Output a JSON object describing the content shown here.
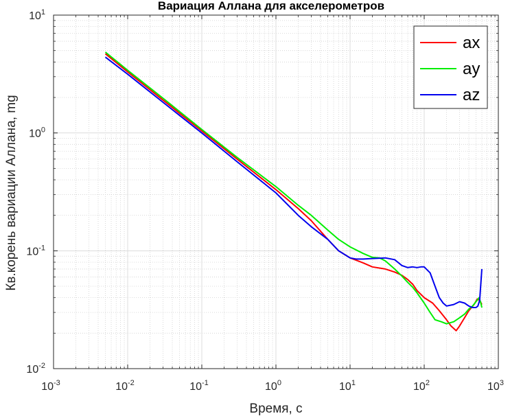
{
  "chart_data": {
    "type": "line",
    "title": "Вариация Аллана для акселерометров",
    "xlabel": "Время, с",
    "ylabel": "Кв.корень вариации Аллана, mg",
    "xscale": "log",
    "yscale": "log",
    "xlim": [
      0.001,
      1000
    ],
    "ylim": [
      0.01,
      10
    ],
    "grid": true,
    "minor_grid": true,
    "legend_position": "top-right",
    "x_ticks": [
      {
        "base": "10",
        "exp": "-3"
      },
      {
        "base": "10",
        "exp": "-2"
      },
      {
        "base": "10",
        "exp": "-1"
      },
      {
        "base": "10",
        "exp": "0"
      },
      {
        "base": "10",
        "exp": "1"
      },
      {
        "base": "10",
        "exp": "2"
      },
      {
        "base": "10",
        "exp": "3"
      }
    ],
    "y_ticks": [
      {
        "base": "10",
        "exp": "-2"
      },
      {
        "base": "10",
        "exp": "-1"
      },
      {
        "base": "10",
        "exp": "0"
      },
      {
        "base": "10",
        "exp": "1"
      }
    ],
    "series": [
      {
        "name": "ax",
        "color": "#ff0000",
        "points": [
          [
            0.005,
            4.7
          ],
          [
            0.01,
            3.3
          ],
          [
            0.03,
            1.9
          ],
          [
            0.1,
            1.04
          ],
          [
            0.3,
            0.6
          ],
          [
            1,
            0.33
          ],
          [
            2,
            0.228
          ],
          [
            3,
            0.18
          ],
          [
            5,
            0.125
          ],
          [
            7,
            0.1
          ],
          [
            10,
            0.087
          ],
          [
            15,
            0.079
          ],
          [
            20,
            0.073
          ],
          [
            30,
            0.07
          ],
          [
            40,
            0.066
          ],
          [
            50,
            0.062
          ],
          [
            60,
            0.057
          ],
          [
            70,
            0.052
          ],
          [
            80,
            0.046
          ],
          [
            100,
            0.04
          ],
          [
            130,
            0.036
          ],
          [
            160,
            0.031
          ],
          [
            200,
            0.026
          ],
          [
            230,
            0.023
          ],
          [
            270,
            0.021
          ],
          [
            300,
            0.023
          ],
          [
            350,
            0.027
          ],
          [
            400,
            0.031
          ],
          [
            470,
            0.035
          ],
          [
            520,
            0.039
          ],
          [
            560,
            0.038
          ],
          [
            600,
            0.035
          ]
        ]
      },
      {
        "name": "ay",
        "color": "#00ee00",
        "points": [
          [
            0.005,
            4.85
          ],
          [
            0.01,
            3.4
          ],
          [
            0.03,
            1.97
          ],
          [
            0.1,
            1.07
          ],
          [
            0.3,
            0.62
          ],
          [
            1,
            0.35
          ],
          [
            2,
            0.243
          ],
          [
            3,
            0.2
          ],
          [
            5,
            0.15
          ],
          [
            7,
            0.125
          ],
          [
            10,
            0.108
          ],
          [
            15,
            0.095
          ],
          [
            20,
            0.088
          ],
          [
            25,
            0.087
          ],
          [
            30,
            0.082
          ],
          [
            40,
            0.07
          ],
          [
            50,
            0.061
          ],
          [
            60,
            0.054
          ],
          [
            70,
            0.049
          ],
          [
            80,
            0.044
          ],
          [
            100,
            0.036
          ],
          [
            120,
            0.03
          ],
          [
            140,
            0.026
          ],
          [
            170,
            0.025
          ],
          [
            200,
            0.024
          ],
          [
            250,
            0.025
          ],
          [
            300,
            0.027
          ],
          [
            350,
            0.029
          ],
          [
            400,
            0.032
          ],
          [
            450,
            0.034
          ],
          [
            500,
            0.037
          ],
          [
            550,
            0.04
          ],
          [
            580,
            0.036
          ],
          [
            600,
            0.033
          ]
        ]
      },
      {
        "name": "az",
        "color": "#0000ee",
        "points": [
          [
            0.005,
            4.4
          ],
          [
            0.01,
            3.15
          ],
          [
            0.03,
            1.82
          ],
          [
            0.1,
            1.0
          ],
          [
            0.3,
            0.57
          ],
          [
            1,
            0.31
          ],
          [
            2,
            0.2
          ],
          [
            3,
            0.16
          ],
          [
            5,
            0.125
          ],
          [
            7,
            0.1
          ],
          [
            10,
            0.087
          ],
          [
            12,
            0.085
          ],
          [
            15,
            0.085
          ],
          [
            20,
            0.086
          ],
          [
            30,
            0.087
          ],
          [
            40,
            0.084
          ],
          [
            50,
            0.075
          ],
          [
            60,
            0.072
          ],
          [
            70,
            0.073
          ],
          [
            80,
            0.072
          ],
          [
            90,
            0.073
          ],
          [
            100,
            0.073
          ],
          [
            120,
            0.065
          ],
          [
            140,
            0.05
          ],
          [
            160,
            0.04
          ],
          [
            180,
            0.036
          ],
          [
            200,
            0.034
          ],
          [
            250,
            0.035
          ],
          [
            300,
            0.037
          ],
          [
            350,
            0.036
          ],
          [
            400,
            0.034
          ],
          [
            450,
            0.033
          ],
          [
            500,
            0.033
          ],
          [
            530,
            0.034
          ],
          [
            560,
            0.038
          ],
          [
            600,
            0.07
          ]
        ]
      }
    ]
  }
}
